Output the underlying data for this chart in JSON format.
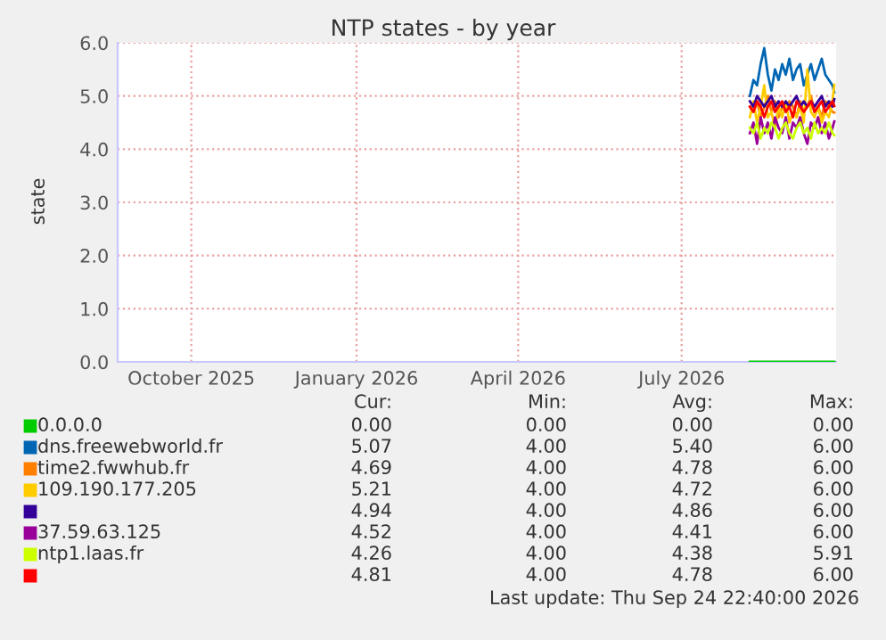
{
  "chart_data": {
    "type": "line",
    "title": "NTP states - by year",
    "ylabel": "state",
    "x": [
      "2026-08-08",
      "2026-08-10",
      "2026-08-12",
      "2026-08-14",
      "2026-08-16",
      "2026-08-18",
      "2026-08-20",
      "2026-08-22",
      "2026-08-24",
      "2026-08-26",
      "2026-08-28",
      "2026-08-30",
      "2026-09-01",
      "2026-09-03",
      "2026-09-05",
      "2026-09-07",
      "2026-09-09",
      "2026-09-11",
      "2026-09-13",
      "2026-09-15",
      "2026-09-17",
      "2026-09-19",
      "2026-09-21",
      "2026-09-23",
      "2026-09-24"
    ],
    "series": [
      {
        "name": "0.0.0.0",
        "color": "#00cc00",
        "values": [
          0,
          0,
          0,
          0,
          0,
          0,
          0,
          0,
          0,
          0,
          0,
          0,
          0,
          0,
          0,
          0,
          0,
          0,
          0,
          0,
          0,
          0,
          0,
          0,
          0
        ]
      },
      {
        "name": "dns.freewebworld.fr",
        "color": "#0066b3",
        "values": [
          5.0,
          5.3,
          5.2,
          5.6,
          5.9,
          5.4,
          5.1,
          5.5,
          5.3,
          5.6,
          5.4,
          5.7,
          5.3,
          5.5,
          5.6,
          5.2,
          5.4,
          5.6,
          5.3,
          5.5,
          5.7,
          5.4,
          5.3,
          5.2,
          5.07
        ]
      },
      {
        "name": "time2.fwwhub.fr",
        "color": "#ff8000",
        "values": [
          4.8,
          4.7,
          4.9,
          4.6,
          4.8,
          5.0,
          4.7,
          4.9,
          4.6,
          4.8,
          4.7,
          4.9,
          4.8,
          4.6,
          4.9,
          4.7,
          4.8,
          5.0,
          4.7,
          4.8,
          4.6,
          4.9,
          4.8,
          4.7,
          4.69
        ]
      },
      {
        "name": "109.190.177.205",
        "color": "#ffcc00",
        "values": [
          4.6,
          4.9,
          4.5,
          4.8,
          5.2,
          4.6,
          4.7,
          4.4,
          4.8,
          4.6,
          4.9,
          4.5,
          4.7,
          4.6,
          4.8,
          4.5,
          5.5,
          4.7,
          4.6,
          4.8,
          4.5,
          4.7,
          4.6,
          4.9,
          5.21
        ]
      },
      {
        "color": "#330099",
        "values": [
          4.9,
          4.8,
          5.0,
          4.9,
          4.8,
          4.9,
          5.0,
          4.8,
          4.9,
          4.8,
          4.9,
          4.8,
          4.9,
          5.0,
          4.8,
          4.9,
          4.8,
          4.9,
          4.8,
          4.9,
          5.0,
          4.8,
          4.9,
          4.8,
          4.94
        ]
      },
      {
        "name": "37.59.63.125",
        "color": "#990099",
        "values": [
          4.3,
          4.5,
          4.1,
          4.6,
          4.3,
          4.5,
          4.2,
          4.6,
          4.4,
          4.3,
          4.6,
          4.2,
          4.5,
          4.4,
          4.6,
          4.3,
          4.1,
          4.5,
          4.4,
          4.6,
          4.3,
          4.5,
          4.2,
          4.4,
          4.52
        ]
      },
      {
        "name": "ntp1.laas.fr",
        "color": "#ccff00",
        "values": [
          4.4,
          4.3,
          4.5,
          4.2,
          4.4,
          4.3,
          4.5,
          4.4,
          4.2,
          4.4,
          4.5,
          4.3,
          4.2,
          4.4,
          4.5,
          4.3,
          4.4,
          4.2,
          4.5,
          4.3,
          4.4,
          4.3,
          4.5,
          4.3,
          4.26
        ]
      },
      {
        "color": "#ff0000",
        "values": [
          4.8,
          4.7,
          4.9,
          4.8,
          4.6,
          4.8,
          4.9,
          4.7,
          4.8,
          4.9,
          4.7,
          4.8,
          4.6,
          4.9,
          4.8,
          4.7,
          4.8,
          4.9,
          4.7,
          4.8,
          4.9,
          4.7,
          4.8,
          4.9,
          4.81
        ]
      }
    ],
    "xlim": [
      "2025-08-21",
      "2026-09-25"
    ],
    "xticks": [
      {
        "value": "2025-10-01",
        "label": "October 2025"
      },
      {
        "value": "2026-01-01",
        "label": "January 2026"
      },
      {
        "value": "2026-04-01",
        "label": "April 2026"
      },
      {
        "value": "2026-07-01",
        "label": "July 2026"
      }
    ],
    "ylim": [
      0,
      6
    ],
    "yticks": [
      {
        "value": 0,
        "label": "0.0"
      },
      {
        "value": 1,
        "label": "1.0"
      },
      {
        "value": 2,
        "label": "2.0"
      },
      {
        "value": 3,
        "label": "3.0"
      },
      {
        "value": 4,
        "label": "4.0"
      },
      {
        "value": 5,
        "label": "5.0"
      },
      {
        "value": 6,
        "label": "6.0"
      }
    ],
    "grid": true,
    "legend": "bottom",
    "marker": "none",
    "line_style": "solid",
    "annotations": [
      "Cur:",
      "Min:",
      "Avg:",
      "Max:",
      "0.00",
      "0.00",
      "0.00",
      "0.00",
      "5.07",
      "4.00",
      "5.40",
      "6.00",
      "4.69",
      "4.00",
      "4.78",
      "6.00",
      "5.21",
      "4.00",
      "4.72",
      "6.00",
      "4.94",
      "4.00",
      "4.86",
      "6.00",
      "4.52",
      "4.00",
      "4.41",
      "6.00",
      "4.26",
      "4.00",
      "4.38",
      "5.91",
      "4.81",
      "4.00",
      "4.78",
      "6.00",
      "Last update: Thu Sep 24 22:40:00 2026"
    ]
  }
}
